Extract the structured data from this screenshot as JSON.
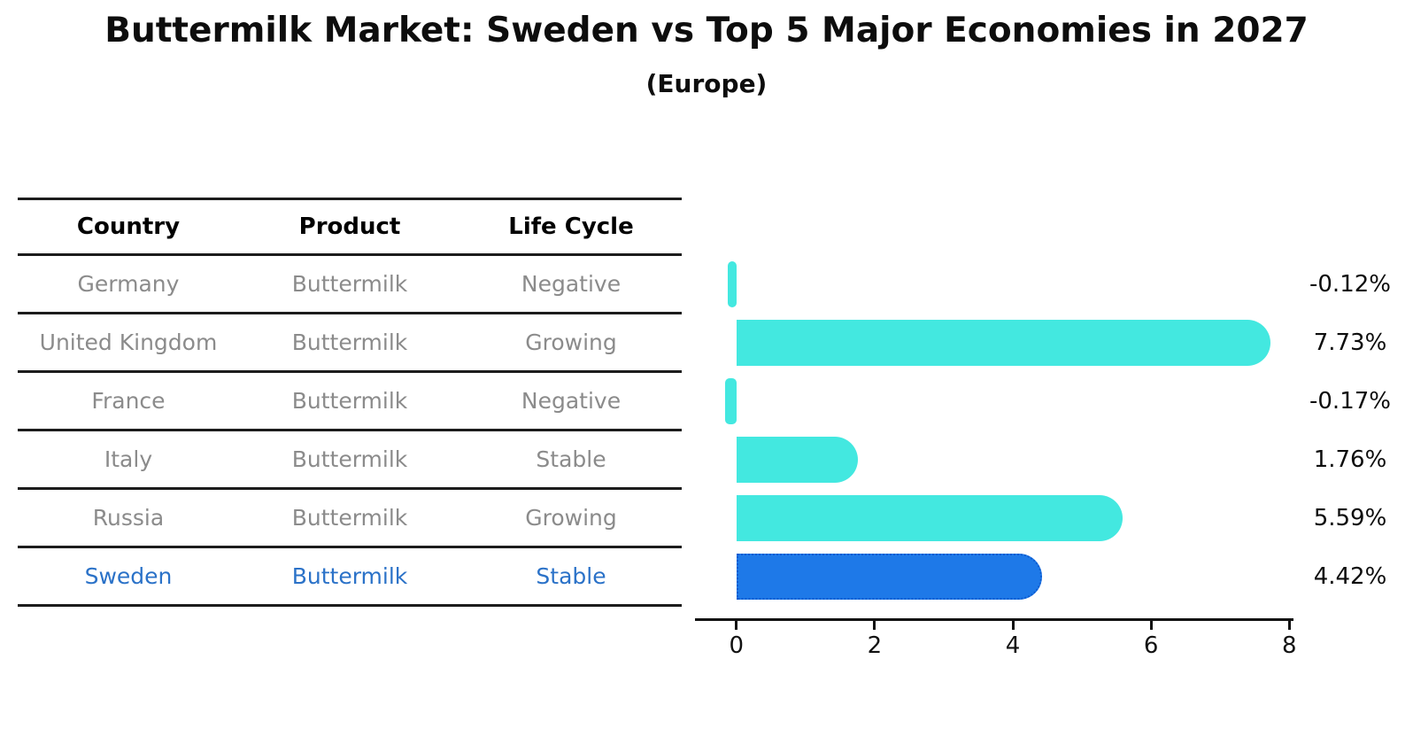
{
  "title": "Buttermilk Market: Sweden vs Top 5 Major Economies in 2027",
  "subtitle": "(Europe)",
  "table": {
    "headers": {
      "country": "Country",
      "product": "Product",
      "life_cycle": "Life Cycle"
    },
    "rows": [
      {
        "country": "Germany",
        "product": "Buttermilk",
        "life_cycle": "Negative",
        "highlight": false
      },
      {
        "country": "United Kingdom",
        "product": "Buttermilk",
        "life_cycle": "Growing",
        "highlight": false
      },
      {
        "country": "France",
        "product": "Buttermilk",
        "life_cycle": "Negative",
        "highlight": false
      },
      {
        "country": "Italy",
        "product": "Buttermilk",
        "life_cycle": "Stable",
        "highlight": false
      },
      {
        "country": "Russia",
        "product": "Buttermilk",
        "life_cycle": "Growing",
        "highlight": false
      },
      {
        "country": "Sweden",
        "product": "Buttermilk",
        "life_cycle": "Stable",
        "highlight": true
      }
    ]
  },
  "chart_data": {
    "type": "bar",
    "orientation": "horizontal",
    "categories": [
      "Germany",
      "United Kingdom",
      "France",
      "Italy",
      "Russia",
      "Sweden"
    ],
    "values": [
      -0.12,
      7.73,
      -0.17,
      1.76,
      5.59,
      4.42
    ],
    "labels": [
      "-0.12%",
      "7.73%",
      "-0.17%",
      "1.76%",
      "5.59%",
      "4.42%"
    ],
    "xticks": [
      0,
      2,
      4,
      6,
      8
    ],
    "xlim": [
      -0.6,
      8.06
    ],
    "grid": false,
    "legend": "none",
    "bar_color": "#43E8E0",
    "highlight_color": "#1E79E8",
    "highlight_border_color": "#0d5bd0",
    "highlight_index": 5
  },
  "colors": {
    "background": "#ffffff",
    "table_text": "#8b8b8b",
    "table_header_text": "#000000",
    "highlight_text": "#2b72c8",
    "axis": "#111111",
    "rule": "#1c1c1c"
  }
}
